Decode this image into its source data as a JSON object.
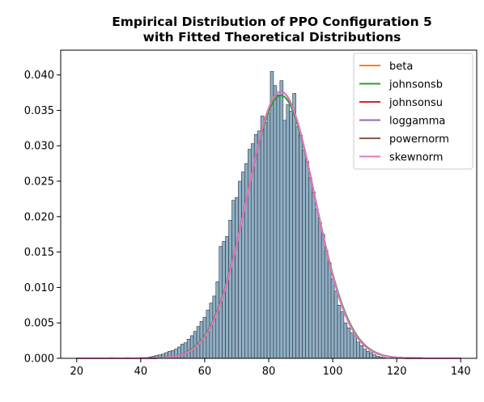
{
  "chart_data": {
    "type": "bar",
    "title_lines": [
      "Empirical Distribution of PPO Configuration 5",
      "with Fitted Theoretical Distributions"
    ],
    "xlabel": "",
    "ylabel": "",
    "xlim": [
      15,
      145
    ],
    "ylim": [
      0,
      0.0435
    ],
    "xticks": [
      20,
      40,
      60,
      80,
      100,
      120,
      140
    ],
    "xtick_labels": [
      "20",
      "40",
      "60",
      "80",
      "100",
      "120",
      "140"
    ],
    "yticks": [
      0,
      0.005,
      0.01,
      0.015,
      0.02,
      0.025,
      0.03,
      0.035,
      0.04
    ],
    "ytick_labels": [
      "0.000",
      "0.005",
      "0.010",
      "0.015",
      "0.020",
      "0.025",
      "0.030",
      "0.035",
      "0.040"
    ],
    "histogram": {
      "bin_width": 1.0,
      "bin_centers": [
        31,
        36,
        40,
        43,
        44,
        45,
        46,
        47,
        48,
        49,
        50,
        51,
        52,
        53,
        54,
        55,
        56,
        57,
        58,
        59,
        60,
        61,
        62,
        63,
        64,
        65,
        66,
        67,
        68,
        69,
        70,
        71,
        72,
        73,
        74,
        75,
        76,
        77,
        78,
        79,
        80,
        81,
        82,
        83,
        84,
        85,
        86,
        87,
        88,
        89,
        90,
        91,
        92,
        93,
        94,
        95,
        96,
        97,
        98,
        99,
        100,
        101,
        102,
        103,
        104,
        105,
        106,
        107,
        108,
        109,
        110,
        111,
        112,
        113,
        114,
        115,
        116
      ],
      "densities": [
        0.0001,
        0.0001,
        0.0001,
        0.0002,
        0.0003,
        0.0004,
        0.0005,
        0.0006,
        0.0008,
        0.001,
        0.0011,
        0.0013,
        0.0016,
        0.002,
        0.0022,
        0.0027,
        0.0032,
        0.0038,
        0.0045,
        0.0052,
        0.0058,
        0.0068,
        0.0078,
        0.0088,
        0.0108,
        0.0158,
        0.0165,
        0.0172,
        0.0195,
        0.0223,
        0.0227,
        0.025,
        0.0263,
        0.0275,
        0.0295,
        0.0303,
        0.0316,
        0.0321,
        0.0342,
        0.0333,
        0.0346,
        0.0405,
        0.0385,
        0.0372,
        0.0392,
        0.0336,
        0.0358,
        0.0349,
        0.0374,
        0.0327,
        0.0315,
        0.0294,
        0.0278,
        0.0255,
        0.0235,
        0.0211,
        0.0192,
        0.0175,
        0.0152,
        0.0135,
        0.0112,
        0.0095,
        0.0075,
        0.0066,
        0.005,
        0.0043,
        0.0036,
        0.0032,
        0.0023,
        0.0018,
        0.0013,
        0.001,
        0.0008,
        0.0005,
        0.0003,
        0.0002,
        0.0001
      ],
      "color": "#8fafc4",
      "edge_color": "#2b3440"
    },
    "series": [
      {
        "name": "beta",
        "color": "#ff7f0e",
        "mu": 83.8,
        "sigma": 10.6
      },
      {
        "name": "johnsonsb",
        "color": "#2ca02c",
        "mu": 83.8,
        "sigma": 10.75
      },
      {
        "name": "johnsonsu",
        "color": "#d62728",
        "mu": 83.8,
        "sigma": 10.6
      },
      {
        "name": "loggamma",
        "color": "#9467bd",
        "mu": 83.8,
        "sigma": 10.6
      },
      {
        "name": "powernorm",
        "color": "#8c564b",
        "mu": 83.8,
        "sigma": 10.6
      },
      {
        "name": "skewnorm",
        "color": "#e377c2",
        "mu": 83.8,
        "sigma": 10.6
      }
    ],
    "legend_position": "top-right",
    "grid": false
  }
}
